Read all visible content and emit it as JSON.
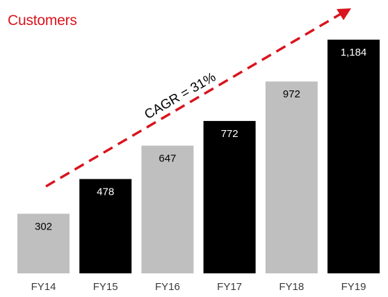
{
  "chart_data": {
    "type": "bar",
    "title": "Customers",
    "categories": [
      "FY14",
      "FY15",
      "FY16",
      "FY17",
      "FY18",
      "FY19"
    ],
    "values": [
      302,
      478,
      647,
      772,
      972,
      1184
    ],
    "value_labels": [
      "302",
      "478",
      "647",
      "772",
      "972",
      "1,184"
    ],
    "bar_colors": [
      "#bfbfbf",
      "#000000",
      "#bfbfbf",
      "#000000",
      "#bfbfbf",
      "#000000"
    ],
    "label_colors": [
      "#000000",
      "#ffffff",
      "#000000",
      "#ffffff",
      "#000000",
      "#ffffff"
    ],
    "ylim": [
      0,
      1280
    ],
    "grid": false,
    "annotation": {
      "text": "CAGR = 31%",
      "color": "#d9141e",
      "style": "dashed-arrow"
    },
    "title_color": "#d9141e"
  }
}
